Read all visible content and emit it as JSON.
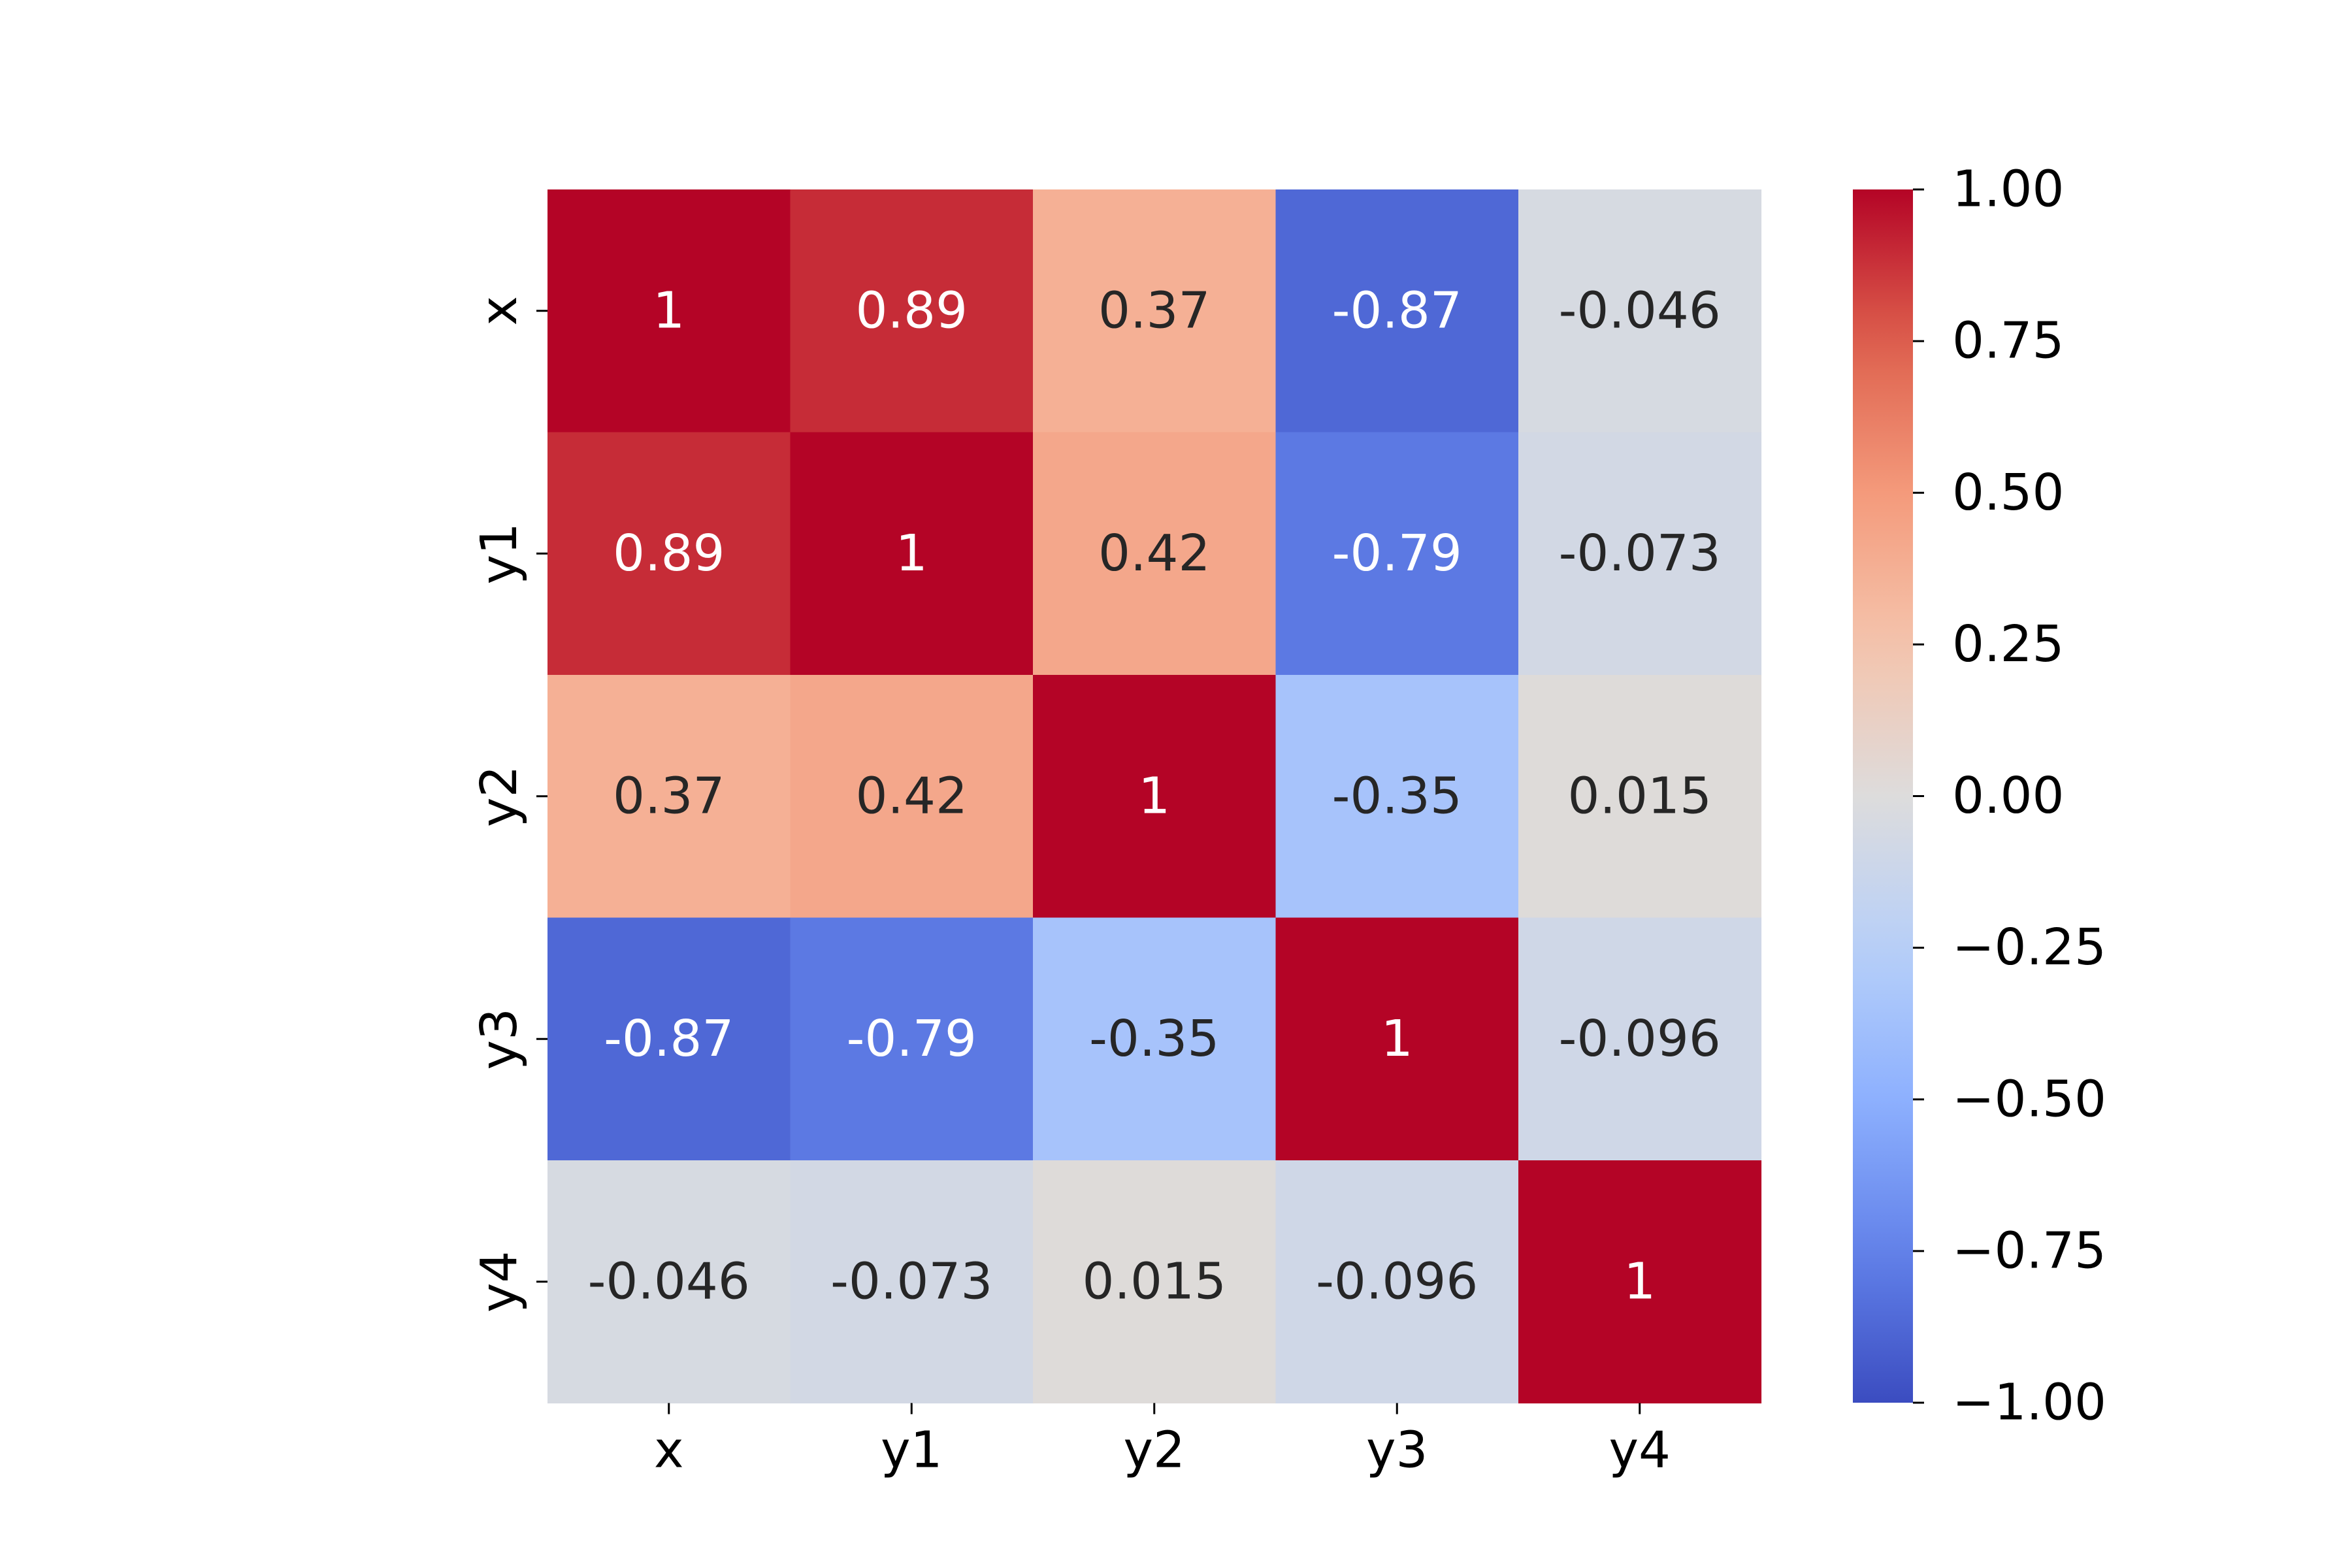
{
  "chart_data": {
    "type": "heatmap",
    "x_labels": [
      "x",
      "y1",
      "y2",
      "y3",
      "y4"
    ],
    "y_labels": [
      "x",
      "y1",
      "y2",
      "y3",
      "y4"
    ],
    "values": [
      [
        1,
        0.89,
        0.37,
        -0.87,
        -0.046
      ],
      [
        0.89,
        1,
        0.42,
        -0.79,
        -0.073
      ],
      [
        0.37,
        0.42,
        1,
        -0.35,
        0.015
      ],
      [
        -0.87,
        -0.79,
        -0.35,
        1,
        -0.096
      ],
      [
        -0.046,
        -0.073,
        0.015,
        -0.096,
        1
      ]
    ],
    "cell_labels": [
      [
        "1",
        "0.89",
        "0.37",
        "-0.87",
        "-0.046"
      ],
      [
        "0.89",
        "1",
        "0.42",
        "-0.79",
        "-0.073"
      ],
      [
        "0.37",
        "0.42",
        "1",
        "-0.35",
        "0.015"
      ],
      [
        "-0.87",
        "-0.79",
        "-0.35",
        "1",
        "-0.096"
      ],
      [
        "-0.046",
        "-0.073",
        "0.015",
        "-0.096",
        "1"
      ]
    ],
    "colormap": "coolwarm",
    "vmin": -1,
    "vmax": 1,
    "colorbar_ticks": [
      1,
      0.75,
      0.5,
      0.25,
      0,
      -0.25,
      -0.5,
      -0.75,
      -1
    ],
    "colorbar_tick_labels": [
      "1.00",
      "0.75",
      "0.50",
      "0.25",
      "0.00",
      "−0.25",
      "−0.50",
      "−0.75",
      "−1.00"
    ],
    "title": "",
    "xlabel": "",
    "ylabel": ""
  }
}
